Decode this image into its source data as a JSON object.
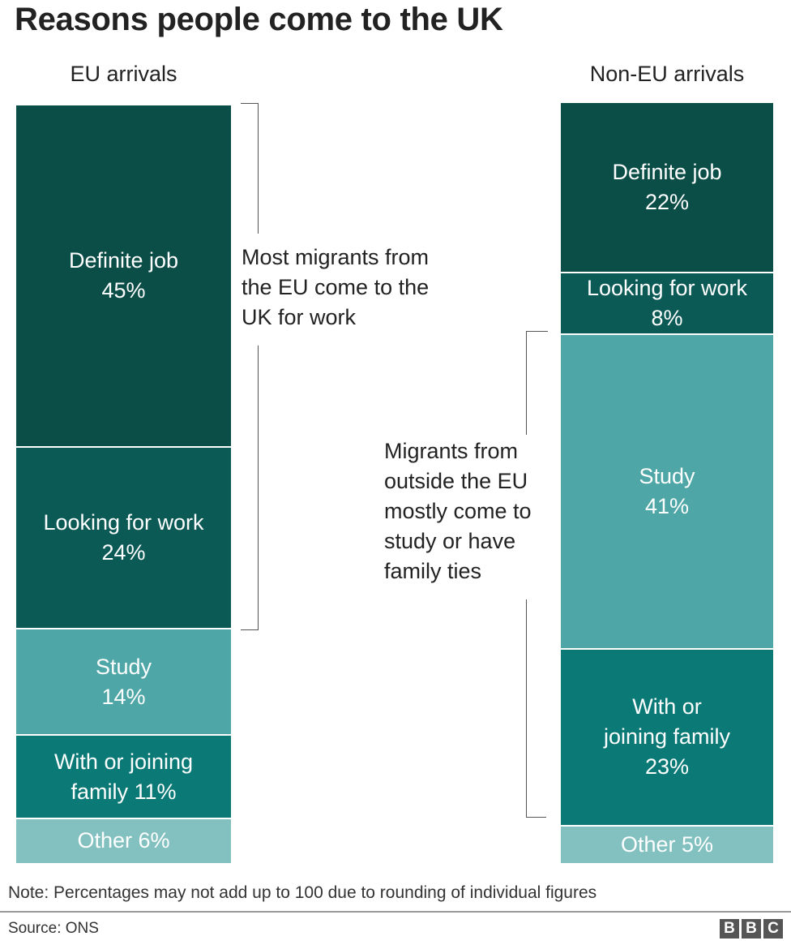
{
  "title": "Reasons people come to the UK",
  "chart_data": [
    {
      "type": "bar",
      "title": "EU arrivals",
      "stacked": true,
      "categories": [
        "Definite job",
        "Looking for work",
        "Study",
        "With or joining family",
        "Other"
      ],
      "values": [
        45,
        24,
        14,
        11,
        6
      ],
      "labels": [
        [
          "Definite job",
          "45%"
        ],
        [
          "Looking for work",
          "24%"
        ],
        [
          "Study",
          "14%"
        ],
        [
          "With or joining",
          "family 11%"
        ],
        [
          "Other 6%"
        ]
      ],
      "colors": [
        "#0b4d47",
        "#0b5a56",
        "#4ea6a6",
        "#0b7a77",
        "#83c1c1"
      ],
      "annotation": [
        "Most migrants from",
        "the EU come to the",
        "UK for work"
      ]
    },
    {
      "type": "bar",
      "title": "Non-EU arrivals",
      "stacked": true,
      "categories": [
        "Definite job",
        "Looking for work",
        "Study",
        "With or joining family",
        "Other"
      ],
      "values": [
        22,
        8,
        41,
        23,
        5
      ],
      "labels": [
        [
          "Definite job",
          "22%"
        ],
        [
          "Looking for work",
          "8%"
        ],
        [
          "Study",
          "41%"
        ],
        [
          "With or",
          "joining family",
          "23%"
        ],
        [
          "Other 5%"
        ]
      ],
      "colors": [
        "#0b4d47",
        "#0b5a56",
        "#4ea6a6",
        "#0b7a77",
        "#83c1c1"
      ],
      "annotation": [
        "Migrants from",
        "outside the EU",
        "mostly come to",
        "study or have",
        "family ties"
      ]
    }
  ],
  "note": "Note: Percentages may not add up to 100 due to rounding of individual figures",
  "source": "Source: ONS",
  "logo": [
    "B",
    "B",
    "C"
  ]
}
